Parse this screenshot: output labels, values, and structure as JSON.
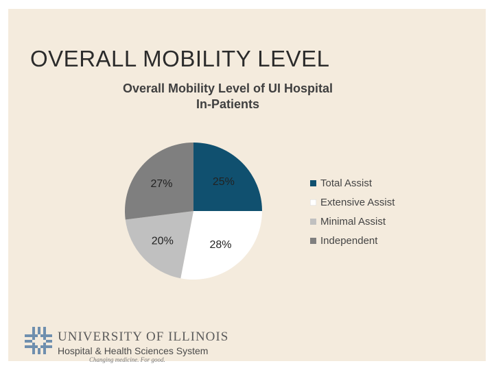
{
  "slide": {
    "title": "OVERALL MOBILITY LEVEL"
  },
  "chart_data": {
    "type": "pie",
    "title_lines": [
      "Overall Mobility Level of UI Hospital",
      "In-Patients"
    ],
    "categories": [
      "Total Assist",
      "Extensive Assist",
      "Minimal Assist",
      "Independent"
    ],
    "values": [
      25,
      28,
      20,
      27
    ],
    "labels": [
      "25%",
      "28%",
      "20%",
      "27%"
    ],
    "colors": [
      "#10506f",
      "#ffffff",
      "#c0c0c0",
      "#7f7f7f"
    ],
    "start_angle": "12 o'clock",
    "direction": "clockwise",
    "legend_position": "right"
  },
  "logo": {
    "line1": "UNIVERSITY OF ILLINOIS",
    "line2": "Hospital & Health Sciences System",
    "tagline": "Changing medicine. For good."
  }
}
